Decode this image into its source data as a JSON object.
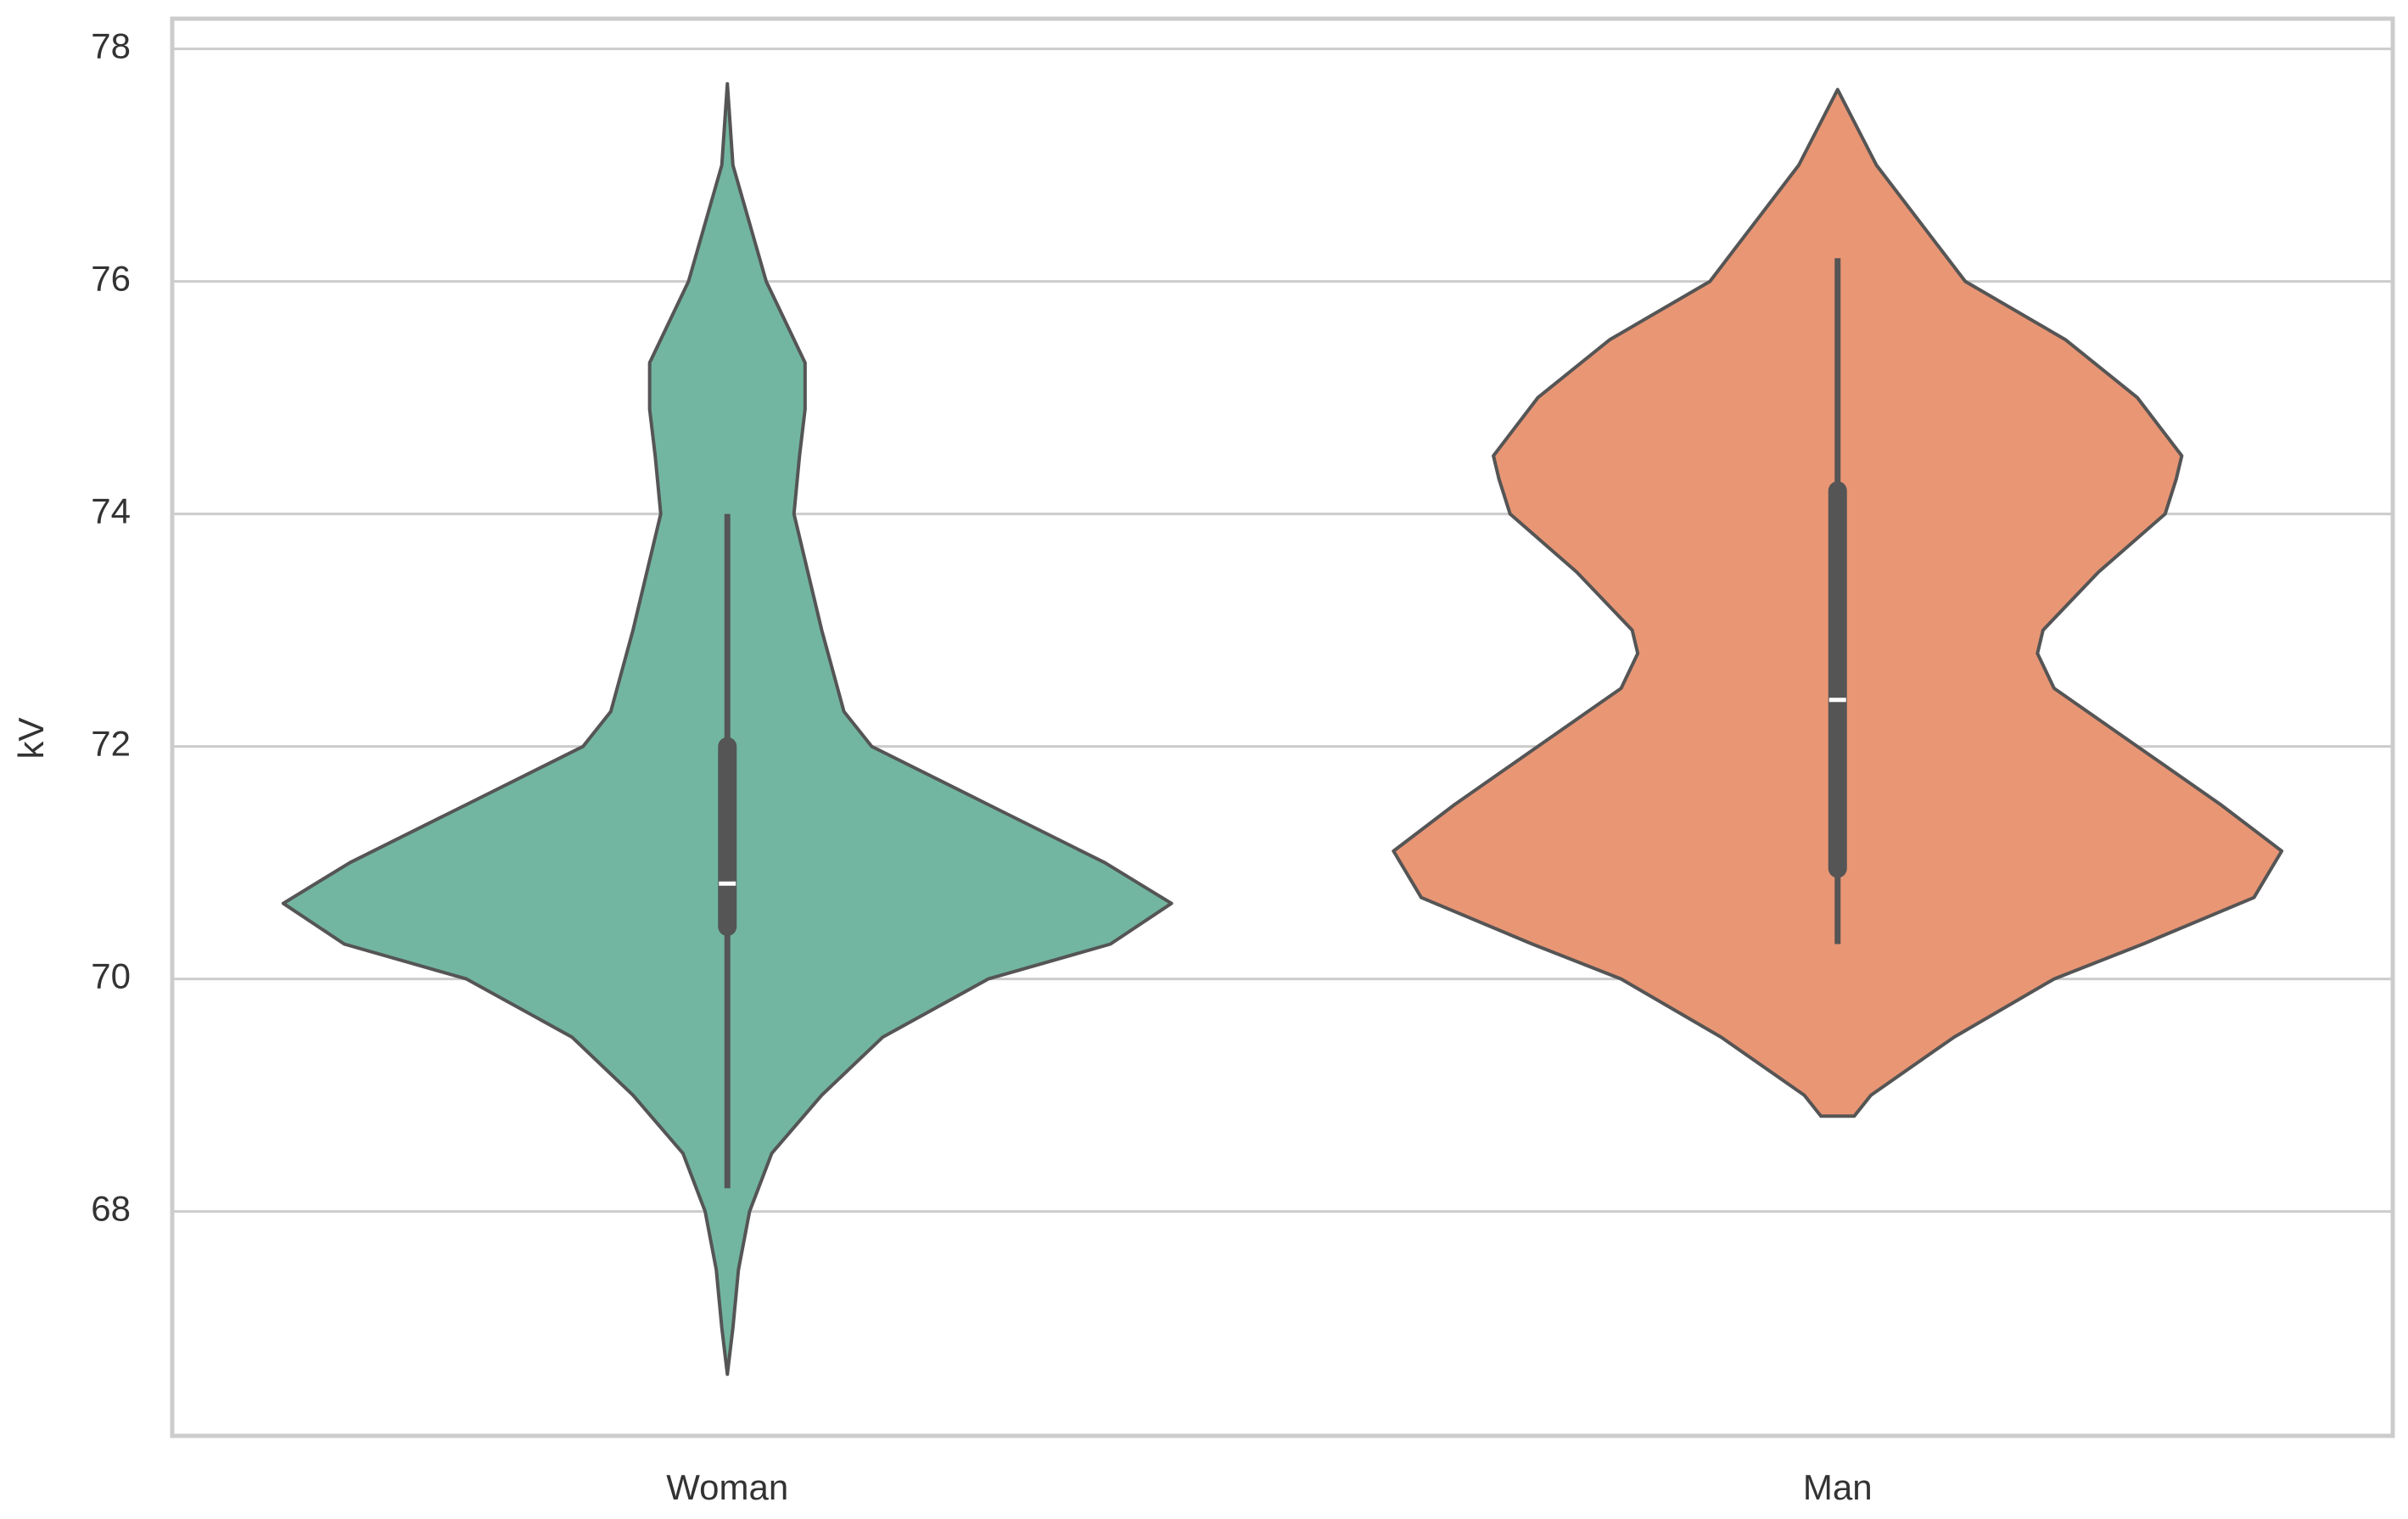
{
  "chart_data": {
    "type": "violin",
    "ylabel": "kV",
    "categories": [
      "Woman",
      "Man"
    ],
    "ylim": [
      66.07,
      78.26
    ],
    "yticks": [
      68,
      70,
      72,
      74,
      76,
      78
    ],
    "grid": true,
    "violins": [
      {
        "color": "#72b6a1",
        "y": [
          77.7,
          77.0,
          76.0,
          75.3,
          74.9,
          74.5,
          74.0,
          73.0,
          72.3,
          72.0,
          71.5,
          71.0,
          70.65,
          70.3,
          70.0,
          69.5,
          69.0,
          68.5,
          68.0,
          67.5,
          67.0,
          66.6
        ],
        "widths": [
          0,
          0.01,
          0.07,
          0.14,
          0.14,
          0.13,
          0.12,
          0.17,
          0.21,
          0.26,
          0.47,
          0.68,
          0.8,
          0.69,
          0.47,
          0.28,
          0.17,
          0.08,
          0.04,
          0.02,
          0.01,
          0
        ],
        "whisker_low": 68.2,
        "whisker_high": 74.0,
        "q1": 70.45,
        "q3": 72.0,
        "median": 70.82
      },
      {
        "color": "#e99675",
        "y": [
          77.65,
          77.0,
          76.0,
          75.5,
          75.0,
          74.5,
          74.3,
          74.0,
          73.5,
          73.0,
          72.8,
          72.5,
          72.0,
          71.5,
          71.1,
          70.7,
          70.3,
          70.0,
          69.5,
          69.0,
          68.82
        ],
        "widths": [
          0,
          0.07,
          0.23,
          0.41,
          0.54,
          0.62,
          0.61,
          0.59,
          0.47,
          0.37,
          0.36,
          0.39,
          0.54,
          0.69,
          0.8,
          0.75,
          0.55,
          0.39,
          0.21,
          0.06,
          0.03
        ],
        "whisker_low": 70.3,
        "whisker_high": 76.2,
        "q1": 70.95,
        "q3": 74.2,
        "median": 72.4
      }
    ]
  }
}
